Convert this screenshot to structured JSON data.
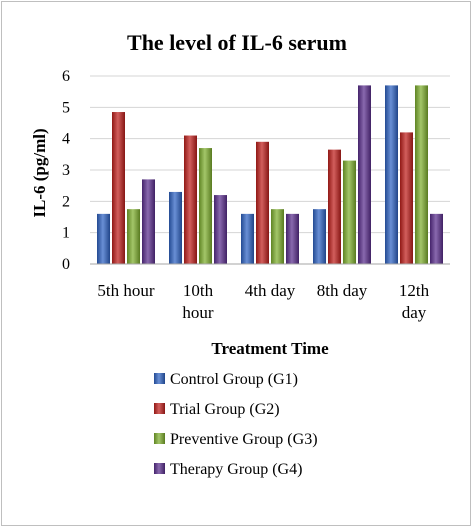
{
  "chart_data": {
    "type": "bar",
    "title": "The level of IL-6 serum",
    "xlabel": "Treatment Time",
    "ylabel": "IL-6 (pg/ml)",
    "ylim": [
      0,
      6
    ],
    "yticks": [
      "0",
      "1",
      "2",
      "3",
      "4",
      "5",
      "6"
    ],
    "grid": true,
    "legend_position": "bottom",
    "categories": [
      [
        "5th hour"
      ],
      [
        "10th",
        "hour"
      ],
      [
        "4th day"
      ],
      [
        "8th day"
      ],
      [
        "12th",
        "day"
      ]
    ],
    "series": [
      {
        "name": "Control Group (G1)",
        "color": "#2e63c4",
        "values": [
          1.6,
          2.3,
          1.6,
          1.75,
          5.7
        ]
      },
      {
        "name": "Trial Group (G2)",
        "color": "#c0201c",
        "values": [
          4.85,
          4.1,
          3.9,
          3.65,
          4.2
        ]
      },
      {
        "name": "Preventive Group (G3)",
        "color": "#7fb02e",
        "values": [
          1.75,
          3.7,
          1.75,
          3.3,
          5.7
        ]
      },
      {
        "name": "Therapy Group (G4)",
        "color": "#5b2f8f",
        "values": [
          2.7,
          2.2,
          1.6,
          5.7,
          1.6
        ]
      }
    ]
  }
}
